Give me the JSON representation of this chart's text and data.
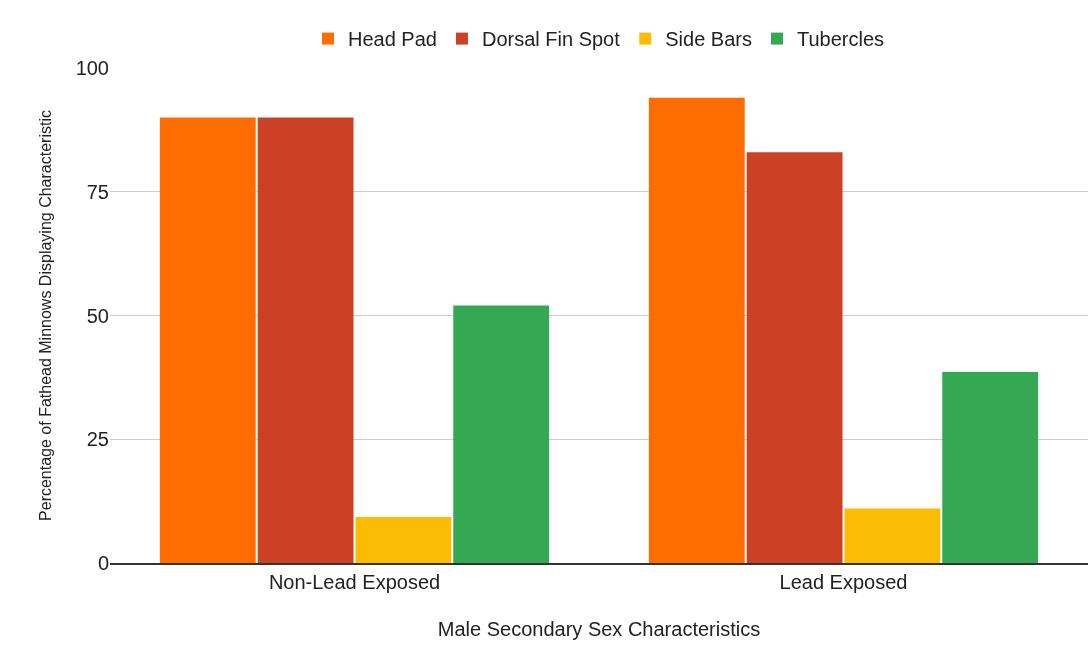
{
  "chart_data": {
    "type": "bar",
    "xlabel": "Male Secondary Sex Characteristics",
    "ylabel": "Percentage of Fathead Minnows Displaying Characteristic",
    "categories": [
      "Non-Lead Exposed",
      "Lead Exposed"
    ],
    "series": [
      {
        "name": "Head Pad",
        "color": "#ff6d01",
        "values": [
          90,
          94
        ]
      },
      {
        "name": "Dorsal Fin Spot",
        "color": "#cc4125",
        "values": [
          90,
          83
        ]
      },
      {
        "name": "Side Bars",
        "color": "#fbbc04",
        "values": [
          9.3,
          11
        ]
      },
      {
        "name": "Tubercles",
        "color": "#34a853",
        "values": [
          52,
          38.6
        ]
      }
    ],
    "ylim": [
      0,
      100
    ],
    "yticks": [
      0,
      25,
      50,
      75,
      100
    ],
    "grid": "y",
    "legend": "top"
  }
}
